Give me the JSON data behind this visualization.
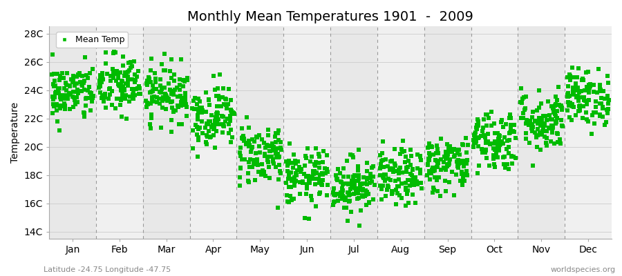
{
  "title": "Monthly Mean Temperatures 1901  -  2009",
  "ylabel": "Temperature",
  "xlabel_labels": [
    "Jan",
    "Feb",
    "Mar",
    "Apr",
    "May",
    "Jun",
    "Jul",
    "Aug",
    "Sep",
    "Oct",
    "Nov",
    "Dec"
  ],
  "ytick_labels": [
    "14C",
    "16C",
    "18C",
    "20C",
    "22C",
    "24C",
    "26C",
    "28C"
  ],
  "ytick_values": [
    14,
    16,
    18,
    20,
    22,
    24,
    26,
    28
  ],
  "ylim": [
    13.5,
    28.5
  ],
  "xlim": [
    -0.5,
    12.5
  ],
  "marker_color": "#00BB00",
  "marker": "s",
  "marker_size": 4,
  "legend_label": "Mean Temp",
  "bottom_left_text": "Latitude -24.75 Longitude -47.75",
  "bottom_right_text": "worldspecies.org",
  "background_color": "#ffffff",
  "band_colors": [
    "#e8e8e8",
    "#f0f0f0"
  ],
  "dashed_line_color": "#999999",
  "hgrid_line_color": "#cccccc",
  "num_years": 109,
  "monthly_means": [
    23.8,
    24.3,
    23.8,
    22.2,
    19.5,
    17.8,
    17.3,
    17.8,
    18.8,
    20.5,
    21.8,
    23.5
  ],
  "monthly_stds": [
    1.0,
    1.1,
    1.0,
    1.1,
    1.1,
    1.0,
    1.0,
    1.0,
    1.0,
    1.1,
    1.1,
    1.0
  ],
  "seed": 42,
  "title_fontsize": 14,
  "axis_fontsize": 10,
  "legend_fontsize": 9,
  "annot_fontsize": 8,
  "annot_color": "#888888"
}
